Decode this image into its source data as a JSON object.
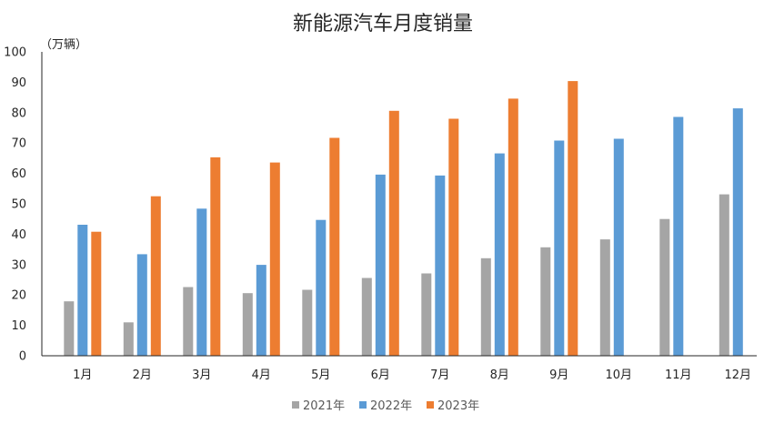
{
  "chart_data": {
    "type": "bar",
    "title": "新能源汽车月度销量",
    "unit_label": "（万辆）",
    "categories": [
      "1月",
      "2月",
      "3月",
      "4月",
      "5月",
      "6月",
      "7月",
      "8月",
      "9月",
      "10月",
      "11月",
      "12月"
    ],
    "ylim": [
      0,
      100
    ],
    "yticks": [
      0,
      10,
      20,
      30,
      40,
      50,
      60,
      70,
      80,
      90,
      100
    ],
    "grid": false,
    "legend_position": "bottom",
    "series": [
      {
        "name": "2021年",
        "color": "#a5a5a5",
        "values": [
          17.9,
          11.0,
          22.6,
          20.6,
          21.7,
          25.6,
          27.1,
          32.1,
          35.7,
          38.3,
          45.0,
          53.1
        ]
      },
      {
        "name": "2022年",
        "color": "#5b9bd5",
        "values": [
          43.1,
          33.4,
          48.4,
          29.9,
          44.7,
          59.6,
          59.3,
          66.6,
          70.8,
          71.4,
          78.6,
          81.4
        ]
      },
      {
        "name": "2023年",
        "color": "#ed7d31",
        "values": [
          40.8,
          52.5,
          65.3,
          63.6,
          71.7,
          80.6,
          78.0,
          84.6,
          90.4,
          null,
          null,
          null
        ]
      }
    ]
  }
}
